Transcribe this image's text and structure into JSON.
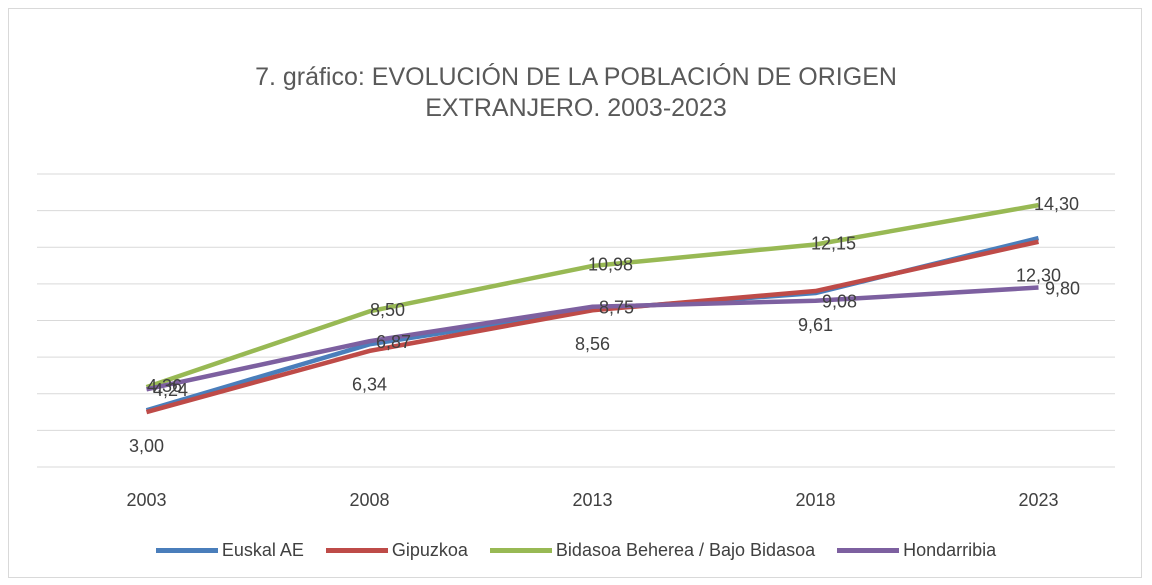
{
  "chart_data": {
    "type": "line",
    "title": "7. gráfico: EVOLUCIÓN DE LA POBLACIÓN DE ORIGEN EXTRANJERO. 2003-2023",
    "categories": [
      "2003",
      "2008",
      "2013",
      "2018",
      "2023"
    ],
    "series": [
      {
        "name": "Euskal AE",
        "color": "#4a7ebb",
        "values": [
          3.1,
          6.7,
          8.6,
          9.5,
          12.5
        ]
      },
      {
        "name": "Gipuzkoa",
        "color": "#be4b48",
        "values": [
          3.0,
          6.34,
          8.56,
          9.61,
          12.3
        ],
        "value_labels": [
          "3,00",
          "6,34",
          "8,56",
          "9,61",
          "12,30"
        ]
      },
      {
        "name": "Bidasoa Beherea / Bajo Bidasoa",
        "color": "#98b954",
        "values": [
          4.36,
          8.5,
          10.98,
          12.15,
          14.3
        ],
        "value_labels": [
          "4,36",
          "8,50",
          "10,98",
          "12,15",
          "14,30"
        ]
      },
      {
        "name": "Hondarribia",
        "color": "#7d60a0",
        "values": [
          4.24,
          6.87,
          8.75,
          9.08,
          9.8
        ],
        "value_labels": [
          "4,24",
          "6,87",
          "8,75",
          "9,08",
          "9,80"
        ]
      }
    ],
    "ylim": [
      0,
      16
    ],
    "yticks": [
      0,
      2,
      4,
      6,
      8,
      10,
      12,
      14,
      16
    ],
    "grid": true,
    "legend": "bottom"
  }
}
